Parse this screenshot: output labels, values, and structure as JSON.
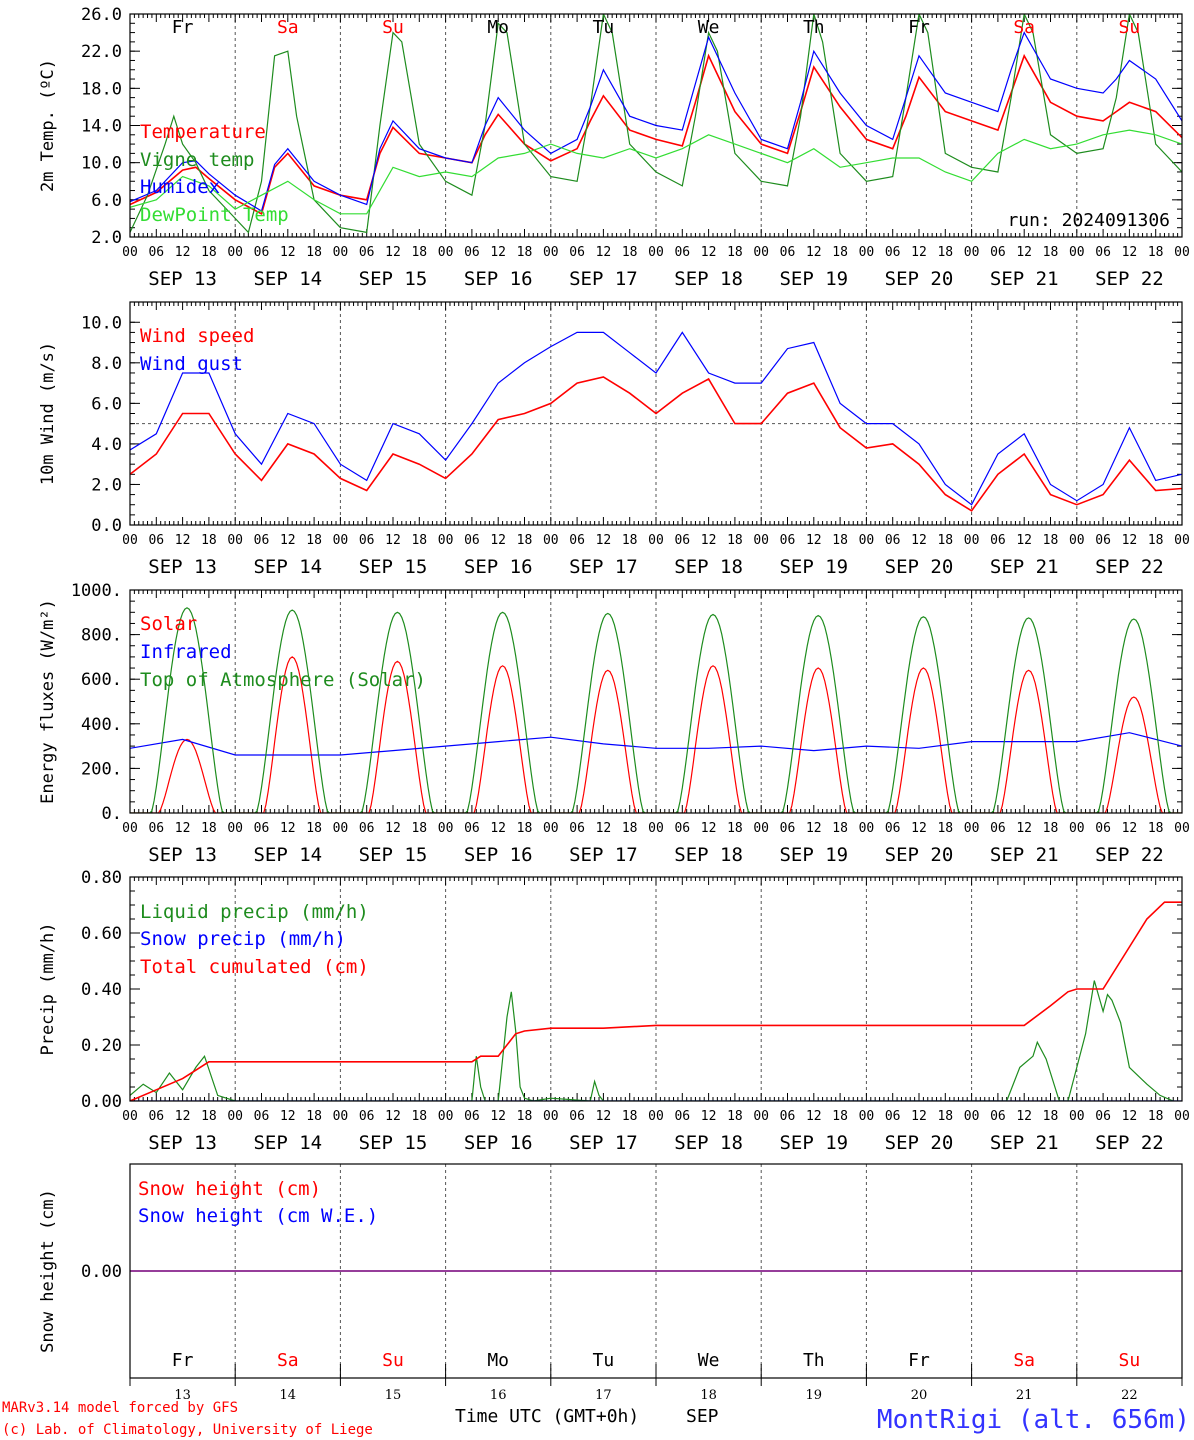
{
  "chart_data": [
    {
      "type": "line",
      "ylabel": "2m Temp. (ºC)",
      "yticks": [
        "2.0",
        "6.0",
        "10.0",
        "14.0",
        "18.0",
        "22.0",
        "26.0"
      ],
      "ylim": [
        2,
        26
      ],
      "xlim_hours": [
        0,
        240
      ],
      "weekday_labels": [
        "Fr",
        "Sa",
        "Su",
        "Mo",
        "Tu",
        "We",
        "Th",
        "Fr",
        "Sa",
        "Su"
      ],
      "hour_ticks": [
        "00",
        "06",
        "12",
        "18"
      ],
      "date_labels": [
        "SEP 13",
        "SEP 14",
        "SEP 15",
        "SEP 16",
        "SEP 17",
        "SEP 18",
        "SEP 19",
        "SEP 20",
        "SEP 21",
        "SEP 22"
      ],
      "run_label": "run: 2024091306",
      "series": [
        {
          "name": "Temperature",
          "color": "#ff0000",
          "x": [
            0,
            6,
            12,
            15,
            18,
            24,
            30,
            33,
            36,
            42,
            48,
            54,
            57,
            60,
            66,
            72,
            78,
            81,
            84,
            90,
            96,
            102,
            105,
            108,
            114,
            120,
            126,
            129,
            132,
            138,
            144,
            150,
            153,
            156,
            162,
            168,
            174,
            177,
            180,
            186,
            192,
            198,
            201,
            204,
            210,
            216,
            222,
            225,
            228,
            234,
            240
          ],
          "y": [
            5.5,
            6.8,
            9.2,
            9.5,
            8.3,
            6.0,
            4.5,
            9.5,
            11.0,
            7.5,
            6.5,
            6.0,
            11.0,
            13.8,
            11.0,
            10.5,
            10.0,
            13.0,
            15.2,
            12.0,
            10.2,
            11.5,
            14.5,
            17.2,
            13.5,
            12.5,
            11.8,
            16.5,
            21.5,
            15.5,
            12.0,
            11.0,
            15.5,
            20.3,
            16.0,
            12.5,
            11.5,
            15.0,
            19.2,
            15.5,
            14.5,
            13.5,
            17.5,
            21.5,
            16.5,
            15.0,
            14.5,
            15.5,
            16.5,
            15.5,
            12.7
          ]
        },
        {
          "name": "Vigne temp",
          "color": "#1e8c1e",
          "x": [
            0,
            4,
            8,
            10,
            12,
            15,
            18,
            24,
            27,
            30,
            33,
            36,
            38,
            42,
            48,
            54,
            57,
            60,
            62,
            66,
            72,
            78,
            81,
            84,
            86,
            90,
            96,
            102,
            105,
            108,
            110,
            114,
            120,
            126,
            129,
            132,
            134,
            138,
            144,
            150,
            153,
            156,
            158,
            162,
            168,
            174,
            177,
            180,
            182,
            186,
            192,
            198,
            201,
            204,
            206,
            210,
            216,
            222,
            225,
            228,
            230,
            234,
            240
          ],
          "y": [
            2.5,
            6.5,
            12.0,
            15.0,
            12.0,
            10.0,
            7.0,
            4.0,
            2.5,
            8.0,
            21.5,
            22.0,
            15.0,
            6.0,
            3.0,
            2.5,
            14.0,
            24.0,
            23.0,
            12.0,
            8.0,
            6.5,
            14.0,
            25.0,
            24.0,
            12.0,
            8.5,
            8.0,
            16.0,
            26.0,
            24.0,
            12.0,
            9.0,
            7.5,
            15.0,
            24.0,
            22.0,
            11.0,
            8.0,
            7.5,
            15.0,
            26.0,
            23.0,
            11.0,
            8.0,
            8.5,
            17.0,
            26.0,
            24.0,
            11.0,
            9.5,
            9.0,
            17.0,
            26.0,
            24.0,
            13.0,
            11.0,
            11.5,
            17.0,
            26.0,
            24.0,
            12.0,
            9.0
          ]
        },
        {
          "name": "Humidex",
          "color": "#0000ff",
          "x": [
            0,
            6,
            12,
            15,
            18,
            24,
            30,
            33,
            36,
            42,
            48,
            54,
            57,
            60,
            66,
            72,
            78,
            81,
            84,
            90,
            96,
            102,
            105,
            108,
            114,
            120,
            126,
            129,
            132,
            138,
            144,
            150,
            153,
            156,
            162,
            168,
            174,
            177,
            180,
            186,
            192,
            198,
            201,
            204,
            210,
            216,
            222,
            225,
            228,
            234,
            240
          ],
          "y": [
            5.8,
            7.0,
            10.0,
            10.2,
            8.8,
            6.5,
            4.8,
            9.8,
            11.5,
            8.0,
            6.5,
            5.5,
            11.5,
            14.5,
            11.5,
            10.5,
            10.0,
            14.0,
            17.0,
            13.5,
            11.0,
            12.5,
            16.0,
            20.0,
            15.0,
            14.0,
            13.5,
            18.5,
            23.5,
            17.5,
            12.5,
            11.5,
            16.5,
            22.0,
            17.5,
            14.0,
            12.5,
            17.0,
            21.5,
            17.5,
            16.5,
            15.5,
            20.0,
            24.0,
            19.0,
            18.0,
            17.5,
            19.0,
            21.0,
            19.0,
            14.5
          ]
        },
        {
          "name": "DewPoint Temp",
          "color": "#33dd33",
          "x": [
            0,
            6,
            12,
            18,
            24,
            30,
            36,
            42,
            48,
            54,
            60,
            66,
            72,
            78,
            84,
            90,
            96,
            102,
            108,
            114,
            120,
            126,
            132,
            138,
            144,
            150,
            156,
            162,
            168,
            174,
            180,
            186,
            192,
            198,
            204,
            210,
            216,
            222,
            228,
            234,
            240
          ],
          "y": [
            5.2,
            6.0,
            8.5,
            7.5,
            5.0,
            6.5,
            8.0,
            6.0,
            4.5,
            4.5,
            9.5,
            8.5,
            9.0,
            8.5,
            10.5,
            11.0,
            12.0,
            11.0,
            10.5,
            11.5,
            10.5,
            11.5,
            13.0,
            12.0,
            11.0,
            10.0,
            11.5,
            9.5,
            10.0,
            10.5,
            10.5,
            9.0,
            8.0,
            11.0,
            12.5,
            11.5,
            12.0,
            13.0,
            13.5,
            13.0,
            12.0
          ]
        }
      ]
    },
    {
      "type": "line",
      "ylabel": "10m Wind (m/s)",
      "yticks": [
        "0.0",
        "2.0",
        "4.0",
        "6.0",
        "8.0",
        "10.0"
      ],
      "ylim": [
        0,
        11
      ],
      "reference_line": 5.0,
      "date_labels": [
        "SEP 13",
        "SEP 14",
        "SEP 15",
        "SEP 16",
        "SEP 17",
        "SEP 18",
        "SEP 19",
        "SEP 20",
        "SEP 21",
        "SEP 22"
      ],
      "series": [
        {
          "name": "Wind speed",
          "color": "#ff0000",
          "x": [
            0,
            6,
            12,
            18,
            24,
            30,
            36,
            42,
            48,
            54,
            60,
            66,
            72,
            78,
            84,
            90,
            96,
            102,
            108,
            114,
            120,
            126,
            132,
            138,
            144,
            150,
            156,
            162,
            168,
            174,
            180,
            186,
            192,
            198,
            204,
            210,
            216,
            222,
            228,
            234,
            240
          ],
          "y": [
            2.5,
            3.5,
            5.5,
            5.5,
            3.5,
            2.2,
            4.0,
            3.5,
            2.3,
            1.7,
            3.5,
            3.0,
            2.3,
            3.5,
            5.2,
            5.5,
            6.0,
            7.0,
            7.3,
            6.5,
            5.5,
            6.5,
            7.2,
            5.0,
            5.0,
            6.5,
            7.0,
            4.8,
            3.8,
            4.0,
            3.0,
            1.5,
            0.7,
            2.5,
            3.5,
            1.5,
            1.0,
            1.5,
            3.2,
            1.7,
            1.8
          ]
        },
        {
          "name": "Wind gust",
          "color": "#0000ff",
          "x": [
            0,
            6,
            12,
            18,
            24,
            30,
            36,
            42,
            48,
            54,
            60,
            66,
            72,
            78,
            84,
            90,
            96,
            102,
            108,
            114,
            120,
            126,
            132,
            138,
            144,
            150,
            156,
            162,
            168,
            174,
            180,
            186,
            192,
            198,
            204,
            210,
            216,
            222,
            228,
            234,
            240
          ],
          "y": [
            3.7,
            4.5,
            7.5,
            7.5,
            4.5,
            3.0,
            5.5,
            5.0,
            3.0,
            2.2,
            5.0,
            4.5,
            3.2,
            5.0,
            7.0,
            8.0,
            8.8,
            9.5,
            9.5,
            8.5,
            7.5,
            9.5,
            7.5,
            7.0,
            7.0,
            8.7,
            9.0,
            6.0,
            5.0,
            5.0,
            4.0,
            2.0,
            1.0,
            3.5,
            4.5,
            2.0,
            1.2,
            2.0,
            4.8,
            2.2,
            2.5
          ]
        }
      ]
    },
    {
      "type": "line",
      "ylabel": "Energy fluxes (W/m²)",
      "yticks": [
        "0.",
        "200.",
        "400.",
        "600.",
        "800.",
        "1000."
      ],
      "ylim": [
        0,
        1000
      ],
      "date_labels": [
        "SEP 13",
        "SEP 14",
        "SEP 15",
        "SEP 16",
        "SEP 17",
        "SEP 18",
        "SEP 19",
        "SEP 20",
        "SEP 21",
        "SEP 22"
      ],
      "series": [
        {
          "name": "Solar",
          "color": "#ff0000",
          "peaks": [
            330,
            700,
            680,
            660,
            640,
            660,
            650,
            650,
            640,
            520
          ]
        },
        {
          "name": "Infrared",
          "color": "#0000ff",
          "x": [
            0,
            12,
            24,
            36,
            48,
            60,
            72,
            84,
            96,
            108,
            120,
            132,
            144,
            156,
            168,
            180,
            192,
            204,
            216,
            228,
            240
          ],
          "y": [
            290,
            330,
            260,
            260,
            260,
            280,
            300,
            320,
            340,
            310,
            290,
            290,
            300,
            280,
            300,
            290,
            320,
            320,
            320,
            360,
            300
          ]
        },
        {
          "name": "Top of Atmosphere (Solar)",
          "color": "#1e8c1e",
          "peaks": [
            920,
            910,
            900,
            900,
            895,
            890,
            885,
            880,
            875,
            870
          ]
        }
      ]
    },
    {
      "type": "line",
      "ylabel": "Precip (mm/h)",
      "yticks": [
        "0.00",
        "0.20",
        "0.40",
        "0.60",
        "0.80"
      ],
      "ylim": [
        0,
        0.8
      ],
      "date_labels": [
        "SEP 13",
        "SEP 14",
        "SEP 15",
        "SEP 16",
        "SEP 17",
        "SEP 18",
        "SEP 19",
        "SEP 20",
        "SEP 21",
        "SEP 22"
      ],
      "series": [
        {
          "name": "Liquid precip (mm/h)",
          "color": "#1e8c1e",
          "x": [
            0,
            3,
            6,
            9,
            12,
            15,
            17,
            20,
            24,
            78,
            79,
            80,
            81,
            84,
            86,
            87,
            88,
            89,
            90,
            92,
            96,
            105,
            106,
            107,
            108,
            200,
            203,
            206,
            207,
            209,
            212,
            214,
            216,
            218,
            220,
            222,
            223,
            224,
            226,
            228,
            232,
            235,
            238
          ],
          "y": [
            0.02,
            0.06,
            0.03,
            0.1,
            0.04,
            0.12,
            0.16,
            0.02,
            0.0,
            0.0,
            0.16,
            0.05,
            0.0,
            0.0,
            0.3,
            0.39,
            0.25,
            0.05,
            0.01,
            0.0,
            0.01,
            0.0,
            0.07,
            0.02,
            0.0,
            0.0,
            0.12,
            0.16,
            0.21,
            0.15,
            0.0,
            0.0,
            0.12,
            0.24,
            0.43,
            0.32,
            0.38,
            0.36,
            0.28,
            0.12,
            0.06,
            0.02,
            0.0
          ]
        },
        {
          "name": "Snow precip (mm/h)",
          "color": "#0000ff",
          "x": [
            0,
            240
          ],
          "y": [
            0,
            0
          ]
        },
        {
          "name": "Total cumulated (cm)",
          "color": "#ff0000",
          "x": [
            0,
            6,
            12,
            15,
            18,
            24,
            78,
            80,
            84,
            88,
            90,
            96,
            108,
            120,
            144,
            168,
            192,
            204,
            210,
            214,
            216,
            222,
            228,
            232,
            236,
            240
          ],
          "y": [
            0.0,
            0.04,
            0.08,
            0.11,
            0.14,
            0.14,
            0.14,
            0.16,
            0.16,
            0.24,
            0.25,
            0.26,
            0.26,
            0.27,
            0.27,
            0.27,
            0.27,
            0.27,
            0.34,
            0.39,
            0.4,
            0.4,
            0.55,
            0.65,
            0.71,
            0.71
          ]
        }
      ]
    },
    {
      "type": "line",
      "ylabel": "Snow height (cm)",
      "yticks": [
        "0.00"
      ],
      "ylim": [
        -1,
        1
      ],
      "weekday_labels": [
        "Fr",
        "Sa",
        "Su",
        "Mo",
        "Tu",
        "We",
        "Th",
        "Fr",
        "Sa",
        "Su"
      ],
      "day_numbers": [
        "13",
        "14",
        "15",
        "16",
        "17",
        "18",
        "19",
        "20",
        "21",
        "22"
      ],
      "series": [
        {
          "name": "Snow height (cm)",
          "color": "#ff0000",
          "x": [
            0,
            240
          ],
          "y": [
            0,
            0
          ]
        },
        {
          "name": "Snow height (cm W.E.)",
          "color": "#0000ff",
          "x": [
            0,
            240
          ],
          "y": [
            0,
            0
          ]
        }
      ]
    }
  ],
  "footer": {
    "credit_line1": "MARv3.14 model forced by GFS",
    "credit_line2": "(c) Lab. of Climatology, University of Liege",
    "time_axis_label": "Time UTC (GMT+0h)",
    "month": "SEP",
    "station": "MontRigi (alt. 656m)"
  },
  "colors": {
    "weekday": "#000000",
    "weekend": "#ff0000",
    "station": "#3333ff"
  }
}
